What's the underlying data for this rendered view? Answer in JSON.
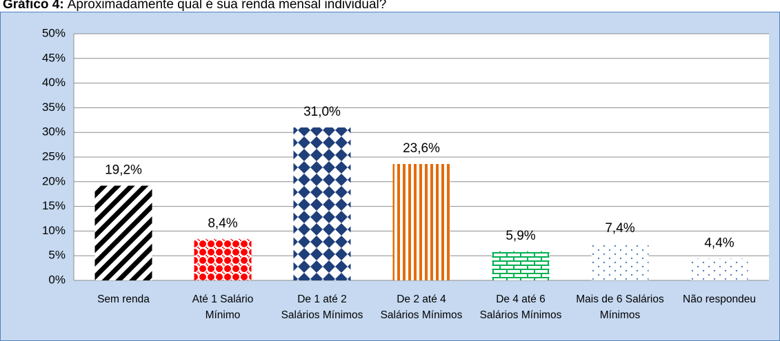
{
  "chart_data": {
    "type": "bar",
    "title_label": "Gráfico 4:",
    "title": "Aproximadamente qual é sua renda mensal individual?",
    "categories": [
      "Sem renda",
      "Até 1 Salário Mínimo",
      "De 1 até 2 Salários Mínimos",
      "De 2 até 4 Salários Mínimos",
      "De 4 até 6 Salários Mínimos",
      "Mais de 6 Salários Mínimos",
      "Não respondeu"
    ],
    "values": [
      19.2,
      8.4,
      31.0,
      23.6,
      5.9,
      7.4,
      4.4
    ],
    "value_labels": [
      "19,2%",
      "8,4%",
      "31,0%",
      "23,6%",
      "5,9%",
      "7,4%",
      "4,4%"
    ],
    "colors": [
      "#000000",
      "#ff0000",
      "#1f3f7a",
      "#e46c0a",
      "#00b050",
      "#4f81bd",
      "#4f81bd"
    ],
    "ylim": [
      0,
      50
    ],
    "yticks": [
      {
        "value": 0,
        "label": "0%"
      },
      {
        "value": 5,
        "label": "5%"
      },
      {
        "value": 10,
        "label": "10%"
      },
      {
        "value": 15,
        "label": "15%"
      },
      {
        "value": 20,
        "label": "20%"
      },
      {
        "value": 25,
        "label": "25%"
      },
      {
        "value": 30,
        "label": "30%"
      },
      {
        "value": 35,
        "label": "35%"
      },
      {
        "value": 40,
        "label": "40%"
      },
      {
        "value": 45,
        "label": "45%"
      },
      {
        "value": 50,
        "label": "50%"
      }
    ],
    "grid": true
  }
}
